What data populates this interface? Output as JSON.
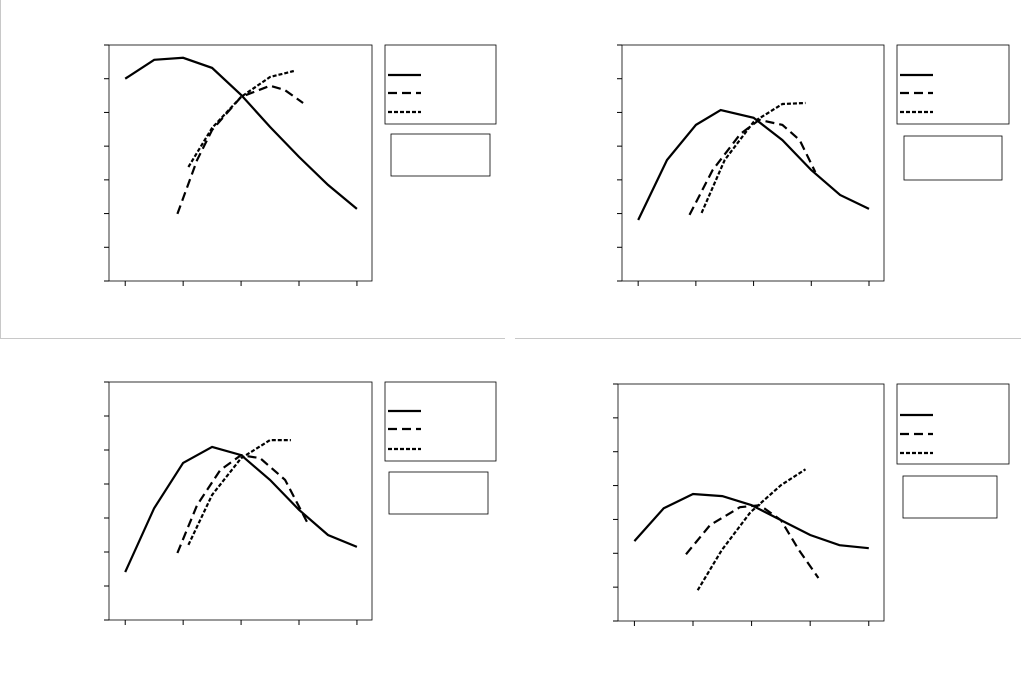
{
  "chart_data": [
    {
      "type": "line",
      "x": [
        1,
        1.5,
        2,
        2.5,
        3,
        3.5,
        4,
        4.5,
        5
      ],
      "xlim": [
        0.72,
        5.26
      ],
      "xticks": [
        1,
        2,
        3,
        4,
        5
      ],
      "ylim": [
        0,
        7
      ],
      "yticks": [
        0,
        1,
        2,
        3,
        4,
        5,
        6,
        7
      ],
      "series": [
        {
          "color": "#000000",
          "dash": "solid",
          "x": [
            1,
            1.5,
            2,
            2.5,
            3,
            3.5,
            4,
            4.5,
            5
          ],
          "values": [
            6.0,
            6.56,
            6.62,
            6.32,
            5.52,
            4.57,
            3.68,
            2.85,
            2.14
          ]
        },
        {
          "color": "#000000",
          "dash": "dashed",
          "x": [
            1.9,
            2.24,
            2.5,
            3,
            3.5,
            3.75,
            4.07
          ],
          "values": [
            1.99,
            3.59,
            4.48,
            5.46,
            5.79,
            5.67,
            5.28
          ]
        },
        {
          "color": "#000000",
          "dash": "dotted",
          "x": [
            2.09,
            2.5,
            3,
            3.5,
            3.91
          ],
          "values": [
            3.38,
            4.54,
            5.46,
            6.05,
            6.23
          ]
        }
      ]
    },
    {
      "type": "line",
      "xlim": [
        0.72,
        5.26
      ],
      "xticks": [
        1,
        2,
        3,
        4,
        5
      ],
      "ylim": [
        0,
        7
      ],
      "yticks": [
        0,
        1,
        2,
        3,
        4,
        5,
        6,
        7
      ],
      "series": [
        {
          "color": "#000000",
          "dash": "solid",
          "x": [
            1,
            1.5,
            2,
            2.43,
            3,
            3.5,
            4,
            4.5,
            5
          ],
          "values": [
            1.81,
            3.59,
            4.63,
            5.07,
            4.84,
            4.18,
            3.29,
            2.55,
            2.14
          ]
        },
        {
          "color": "#000000",
          "dash": "dashed",
          "x": [
            1.89,
            2.29,
            2.77,
            3.1,
            3.5,
            3.8,
            4.07
          ],
          "values": [
            1.96,
            3.29,
            4.36,
            4.78,
            4.63,
            4.18,
            3.23
          ]
        },
        {
          "color": "#000000",
          "dash": "dotted",
          "x": [
            2.1,
            2.5,
            3,
            3.5,
            3.9
          ],
          "values": [
            2.02,
            3.59,
            4.72,
            5.25,
            5.28
          ]
        }
      ]
    },
    {
      "type": "line",
      "xlim": [
        0.72,
        5.26
      ],
      "xticks": [
        1,
        2,
        3,
        4,
        5
      ],
      "ylim": [
        0,
        7
      ],
      "yticks": [
        0,
        1,
        2,
        3,
        4,
        5,
        6,
        7
      ],
      "series": [
        {
          "color": "#000000",
          "dash": "solid",
          "x": [
            1,
            1.5,
            2,
            2.5,
            3,
            3.5,
            4,
            4.5,
            5
          ],
          "values": [
            1.41,
            3.29,
            4.62,
            5.09,
            4.85,
            4.12,
            3.24,
            2.5,
            2.15
          ]
        },
        {
          "color": "#000000",
          "dash": "dashed",
          "x": [
            1.9,
            2.24,
            2.64,
            3,
            3.33,
            3.76,
            4.14
          ],
          "values": [
            1.97,
            3.38,
            4.41,
            4.85,
            4.76,
            4.12,
            2.88
          ]
        },
        {
          "color": "#000000",
          "dash": "dotted",
          "x": [
            2.09,
            2.5,
            3,
            3.5,
            3.86
          ],
          "values": [
            2.21,
            3.68,
            4.76,
            5.29,
            5.29
          ]
        }
      ]
    },
    {
      "type": "line",
      "xlim": [
        0.72,
        5.26
      ],
      "xticks": [
        1,
        2,
        3,
        4,
        5
      ],
      "ylim": [
        0,
        7
      ],
      "yticks": [
        0,
        1,
        2,
        3,
        4,
        5,
        6,
        7
      ],
      "series": [
        {
          "color": "#000000",
          "dash": "solid",
          "x": [
            1,
            1.5,
            2,
            2.5,
            3,
            3.5,
            4,
            4.5,
            5
          ],
          "values": [
            2.36,
            3.33,
            3.75,
            3.69,
            3.42,
            2.98,
            2.54,
            2.24,
            2.15
          ]
        },
        {
          "color": "#000000",
          "dash": "dashed",
          "x": [
            1.88,
            2.29,
            2.8,
            3.14,
            3.5,
            3.81,
            4.14
          ],
          "values": [
            1.97,
            2.83,
            3.36,
            3.42,
            2.98,
            2.09,
            1.27
          ]
        },
        {
          "color": "#000000",
          "dash": "dotted",
          "x": [
            2.08,
            2.49,
            2.98,
            3.5,
            3.92
          ],
          "values": [
            0.91,
            2.09,
            3.21,
            4.01,
            4.48
          ]
        }
      ]
    }
  ]
}
